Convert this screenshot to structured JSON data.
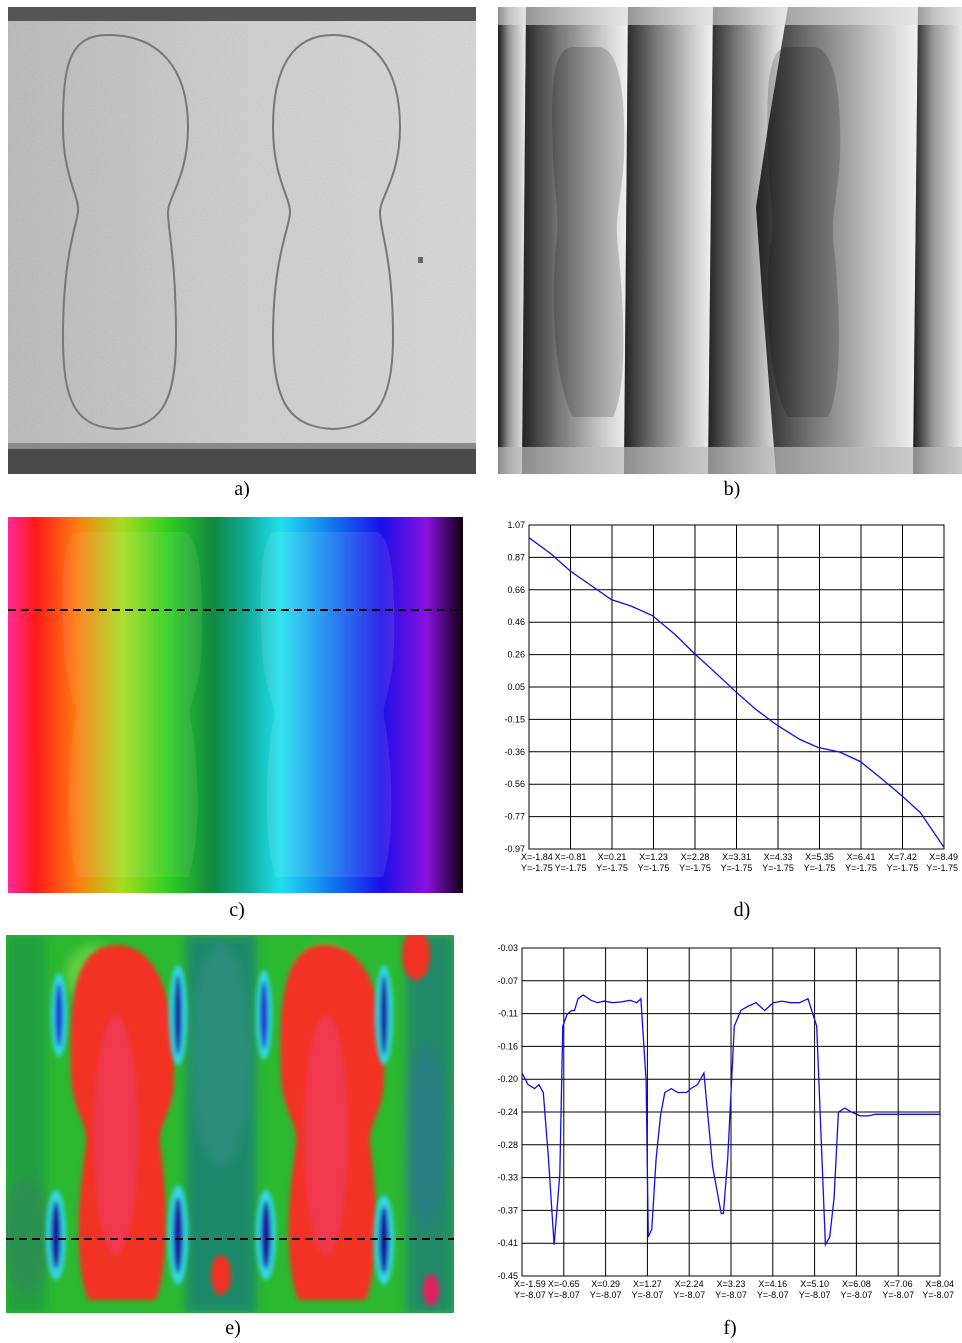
{
  "captions": {
    "a": "a)",
    "b": "b)",
    "c": "c)",
    "d": "d)",
    "e": "e)",
    "f": "f)"
  },
  "chart_data": [
    {
      "panel": "d",
      "type": "line",
      "title": "",
      "xlabel": "",
      "ylabel": "",
      "grid": true,
      "y_ticks": [
        "1.07",
        "0.87",
        "0.66",
        "0.46",
        "0.26",
        "0.05",
        "-0.15",
        "-0.36",
        "-0.56",
        "-0.77",
        "-0.97"
      ],
      "x_ticks": [
        "X=-1.84",
        "X=-0.81",
        "X=0.21",
        "X=1.23",
        "X=2.28",
        "X=3.31",
        "X=4.33",
        "X=5.35",
        "X=6.41",
        "X=7.42",
        "X=8.49"
      ],
      "x_tick_sublabels": [
        "Y=-1.75",
        "Y=-1.75",
        "Y=-1.75",
        "Y=-1.75",
        "Y=-1.75",
        "Y=-1.75",
        "Y=-1.75",
        "Y=-1.75",
        "Y=-1.75",
        "Y=-1.75",
        "Y=-1.75"
      ],
      "xlim": [
        -1.84,
        8.49
      ],
      "ylim": [
        -0.97,
        1.07
      ],
      "series": [
        {
          "color": "#1010e0",
          "x": [
            -1.84,
            -1.3,
            -0.81,
            -0.3,
            0.21,
            0.7,
            1.23,
            1.8,
            2.28,
            2.8,
            3.31,
            3.8,
            4.33,
            4.9,
            5.35,
            5.9,
            6.41,
            6.9,
            7.42,
            7.9,
            8.49
          ],
          "y": [
            0.99,
            0.89,
            0.78,
            0.69,
            0.6,
            0.56,
            0.5,
            0.38,
            0.26,
            0.14,
            0.02,
            -0.09,
            -0.19,
            -0.28,
            -0.33,
            -0.36,
            -0.42,
            -0.52,
            -0.63,
            -0.74,
            -0.96
          ]
        }
      ]
    },
    {
      "panel": "f",
      "type": "line",
      "title": "",
      "xlabel": "",
      "ylabel": "",
      "grid": true,
      "y_ticks": [
        "-0.03",
        "-0.07",
        "-0.11",
        "-0.16",
        "-0.20",
        "-0.24",
        "-0.28",
        "-0.33",
        "-0.37",
        "-0.41",
        "-0.45"
      ],
      "x_ticks": [
        "X=-1.59",
        "X=-0.65",
        "X=0.29",
        "X=1.27",
        "X=2.24",
        "X=3.23",
        "X=4.16",
        "X=5.10",
        "X=6.08",
        "X=7.06",
        "X=8.04"
      ],
      "x_tick_sublabels": [
        "Y=-8.07",
        "Y=-8.07",
        "Y=-8.07",
        "Y=-8.07",
        "Y=-8.07",
        "Y=-8.07",
        "Y=-8.07",
        "Y=-8.07",
        "Y=-8.07",
        "Y=-8.07",
        "Y=-8.07"
      ],
      "xlim": [
        -1.59,
        8.04
      ],
      "ylim": [
        -0.45,
        -0.03
      ],
      "series": [
        {
          "color": "#1010e0",
          "x": [
            -1.59,
            -1.45,
            -1.3,
            -1.2,
            -1.1,
            -0.98,
            -0.85,
            -0.72,
            -0.65,
            -0.55,
            -0.45,
            -0.38,
            -0.3,
            -0.18,
            0.0,
            0.15,
            0.3,
            0.5,
            0.7,
            0.9,
            1.05,
            1.15,
            1.27,
            1.32,
            1.4,
            1.5,
            1.6,
            1.7,
            1.85,
            2.0,
            2.2,
            2.3,
            2.45,
            2.6,
            2.8,
            3.0,
            3.05,
            3.15,
            3.3,
            3.45,
            3.6,
            3.8,
            4.0,
            4.1,
            4.2,
            4.4,
            4.6,
            4.8,
            5.0,
            5.2,
            5.4,
            5.5,
            5.6,
            5.7,
            5.85,
            6.0,
            6.2,
            6.4,
            6.55,
            6.75,
            6.85,
            6.95,
            7.06,
            7.2,
            7.4,
            7.6,
            7.8,
            8.04
          ],
          "y": [
            -0.19,
            -0.205,
            -0.21,
            -0.205,
            -0.215,
            -0.3,
            -0.41,
            -0.32,
            -0.13,
            -0.115,
            -0.11,
            -0.11,
            -0.095,
            -0.09,
            -0.097,
            -0.1,
            -0.098,
            -0.1,
            -0.099,
            -0.097,
            -0.1,
            -0.095,
            -0.2,
            -0.4,
            -0.39,
            -0.3,
            -0.245,
            -0.215,
            -0.21,
            -0.215,
            -0.215,
            -0.21,
            -0.205,
            -0.19,
            -0.31,
            -0.37,
            -0.37,
            -0.3,
            -0.13,
            -0.11,
            -0.105,
            -0.1,
            -0.11,
            -0.105,
            -0.1,
            -0.098,
            -0.1,
            -0.1,
            -0.095,
            -0.13,
            -0.41,
            -0.4,
            -0.35,
            -0.24,
            -0.235,
            -0.24,
            -0.245,
            -0.245,
            -0.243,
            -0.243,
            -0.243,
            -0.243,
            -0.243,
            -0.243,
            -0.243,
            -0.243,
            -0.243,
            -0.243
          ]
        }
      ]
    }
  ]
}
